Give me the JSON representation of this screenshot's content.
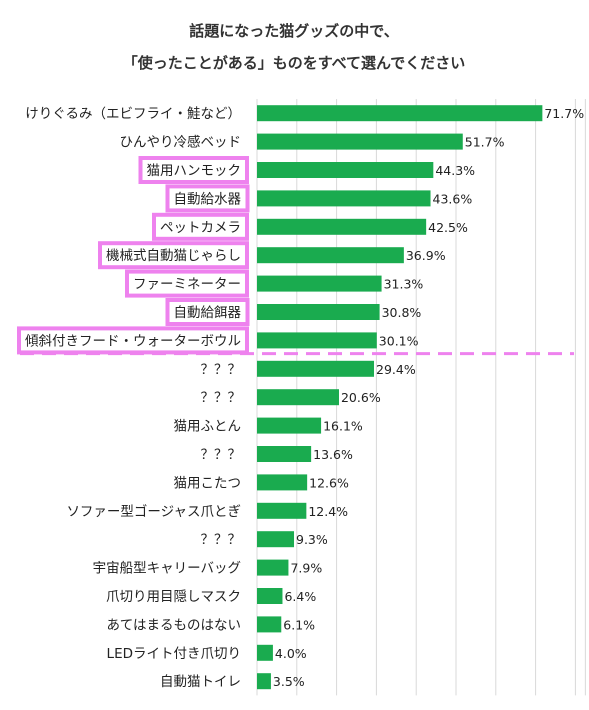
{
  "chart_data": {
    "type": "bar",
    "orientation": "horizontal",
    "title": [
      "話題になった猫グッズの中で、",
      "「使ったことがある」ものをすべて選んでください"
    ],
    "categories": [
      "けりぐるみ（エビフライ・鮭など）",
      "ひんやり冷感ベッド",
      "猫用ハンモック",
      "自動給水器",
      "ペットカメラ",
      "機械式自動猫じゃらし",
      "ファーミネーター",
      "自動給餌器",
      "傾斜付きフード・ウォーターボウル",
      "？？？",
      "？？？",
      "猫用ふとん",
      "？？？",
      "猫用こたつ",
      "ソファー型ゴージャス爪とぎ",
      "？？？",
      "宇宙船型キャリーバッグ",
      "爪切り用目隠しマスク",
      "あてはまるものはない",
      "LEDライト付き爪切り",
      "自動猫トイレ"
    ],
    "values": [
      71.7,
      51.7,
      44.3,
      43.6,
      42.5,
      36.9,
      31.3,
      30.8,
      30.1,
      29.4,
      20.6,
      16.1,
      13.6,
      12.6,
      12.4,
      9.3,
      7.9,
      6.4,
      6.1,
      4.0,
      3.5
    ],
    "value_labels": [
      "71.7%",
      "51.7%",
      "44.3%",
      "43.6%",
      "42.5%",
      "36.9%",
      "31.3%",
      "30.8%",
      "30.1%",
      "29.4%",
      "20.6%",
      "16.1%",
      "13.6%",
      "12.6%",
      "12.4%",
      "9.3%",
      "7.9%",
      "6.4%",
      "6.1%",
      "4.0%",
      "3.5%"
    ],
    "highlighted_categories": [
      2,
      3,
      4,
      5,
      6,
      7,
      8
    ],
    "divider_after_category": 8,
    "xlim": [
      0,
      80
    ],
    "grid": "vertical",
    "bar_color": "#1aab4f",
    "highlight_color": "#ee82ee",
    "divider_color": "#ee82ee",
    "gridline_color": "#d9d9d9"
  }
}
